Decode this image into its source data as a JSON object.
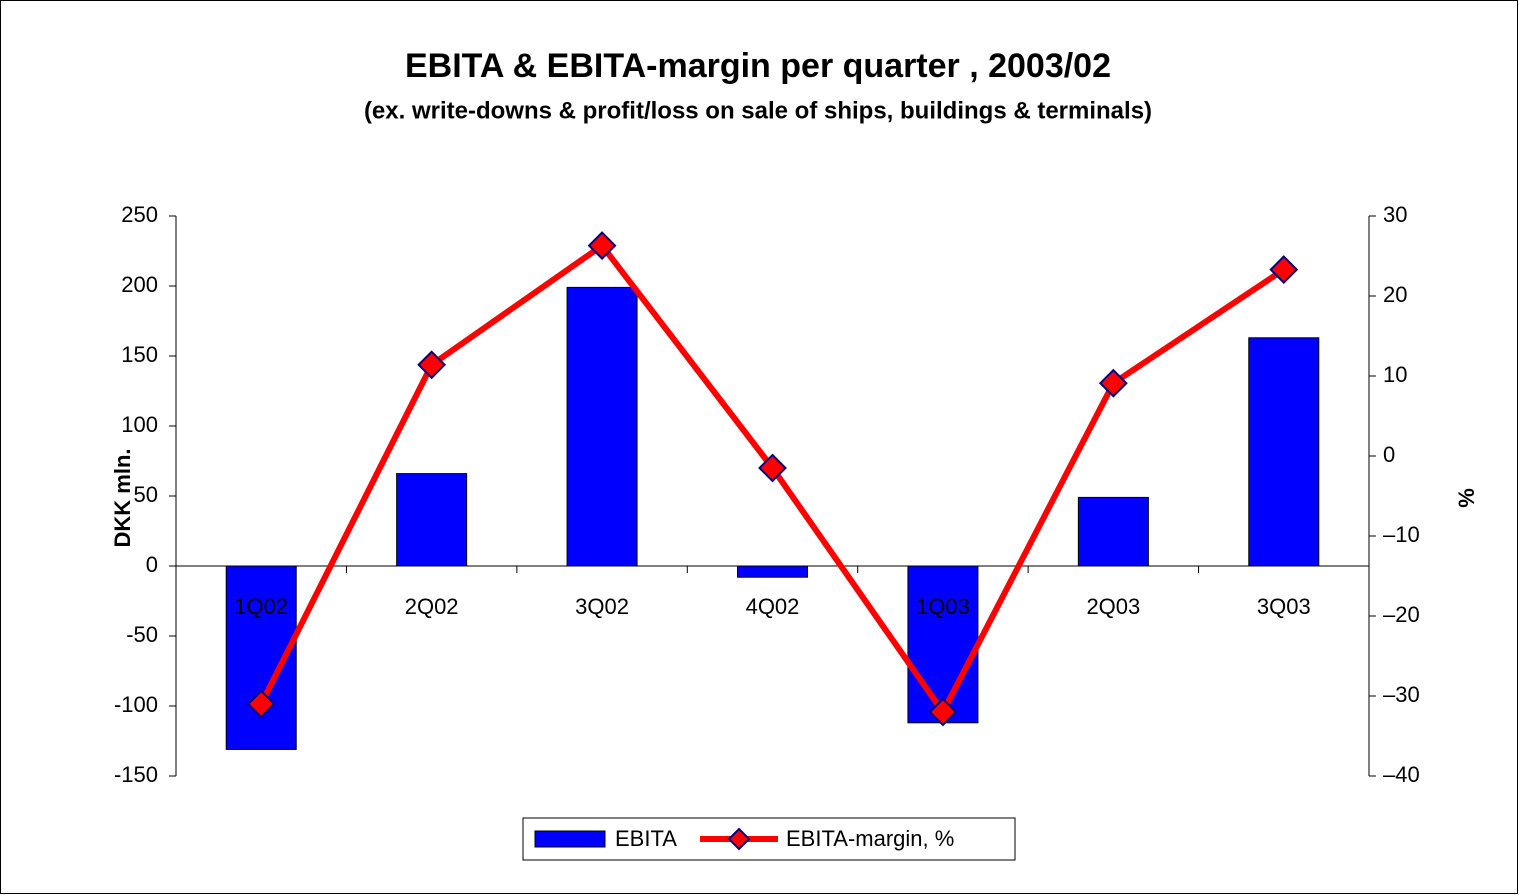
{
  "chart_data": {
    "type": "bar",
    "title": "EBITA & EBITA-margin per quarter , 2003/02",
    "subtitle": "(ex. write-downs & profit/loss on sale of ships, buildings & terminals)",
    "y_label": "DKK mln.",
    "y2_label": "%",
    "categories": [
      "1Q02",
      "2Q02",
      "3Q02",
      "4Q02",
      "1Q03",
      "2Q03",
      "3Q03"
    ],
    "series": [
      {
        "name": "EBITA",
        "type": "bar",
        "color": "#0000ff",
        "values": [
          -131,
          66,
          199,
          -8,
          -112,
          49,
          163
        ]
      },
      {
        "name": "EBITA-margin, %",
        "type": "line",
        "axis": "y2",
        "color": "#ff0000",
        "marker_color": "#000080",
        "values": [
          -31,
          11.4,
          26.3,
          -1.5,
          -32,
          9.1,
          23.3
        ]
      }
    ],
    "ylim": [
      -150,
      250
    ],
    "yticks": [
      -150,
      -100,
      -50,
      0,
      50,
      100,
      150,
      200,
      250
    ],
    "y2lim": [
      -40,
      30
    ],
    "y2ticks": [
      {
        "value": -40,
        "label": "–40"
      },
      {
        "value": -30,
        "label": "–30"
      },
      {
        "value": -20,
        "label": "–20"
      },
      {
        "value": -10,
        "label": "–10"
      },
      0,
      10,
      20,
      30
    ],
    "legend": "bottom",
    "grid": false
  }
}
